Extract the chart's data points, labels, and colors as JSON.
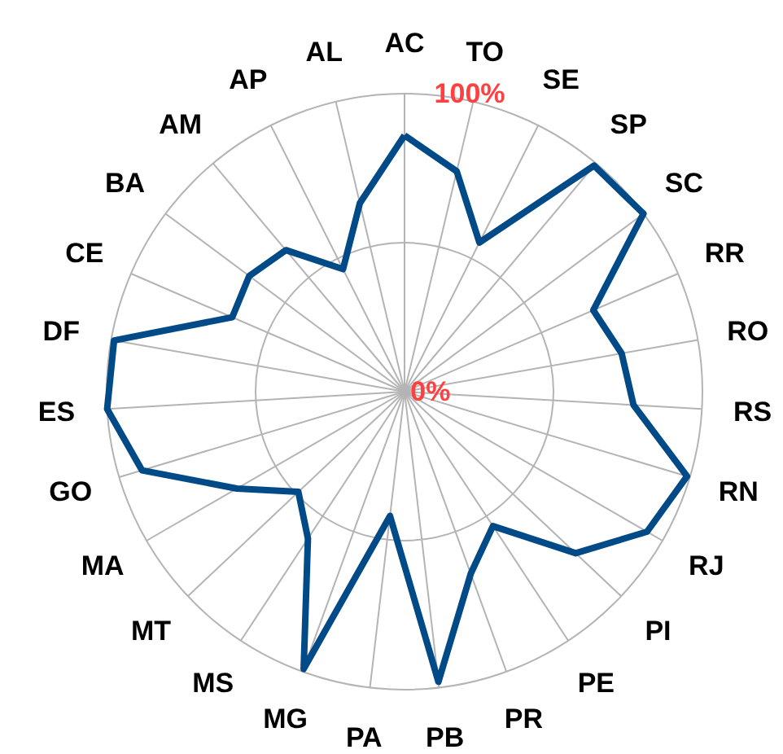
{
  "chart_data": {
    "type": "radar",
    "categories": [
      "AC",
      "TO",
      "SE",
      "SP",
      "SC",
      "RR",
      "RO",
      "RS",
      "RN",
      "RJ",
      "PI",
      "PE",
      "PR",
      "PB",
      "PA",
      "MG",
      "MS",
      "MT",
      "MA",
      "GO",
      "ES",
      "DF",
      "CE",
      "BA",
      "AM",
      "AP",
      "AL"
    ],
    "series": [
      {
        "color": "#004a87",
        "values": [
          86,
          76,
          56,
          99,
          100,
          69,
          74,
          77,
          99,
          94,
          79,
          54,
          65,
          98,
          42,
          99,
          59,
          49,
          65,
          92,
          100,
          99,
          63,
          65,
          62,
          46,
          65
        ]
      }
    ],
    "ylim": [
      0,
      100
    ],
    "yticks": [
      {
        "value": 0,
        "label": "0%"
      },
      {
        "value": 100,
        "label": "100%"
      }
    ],
    "grid": true,
    "line_style": "solid"
  }
}
